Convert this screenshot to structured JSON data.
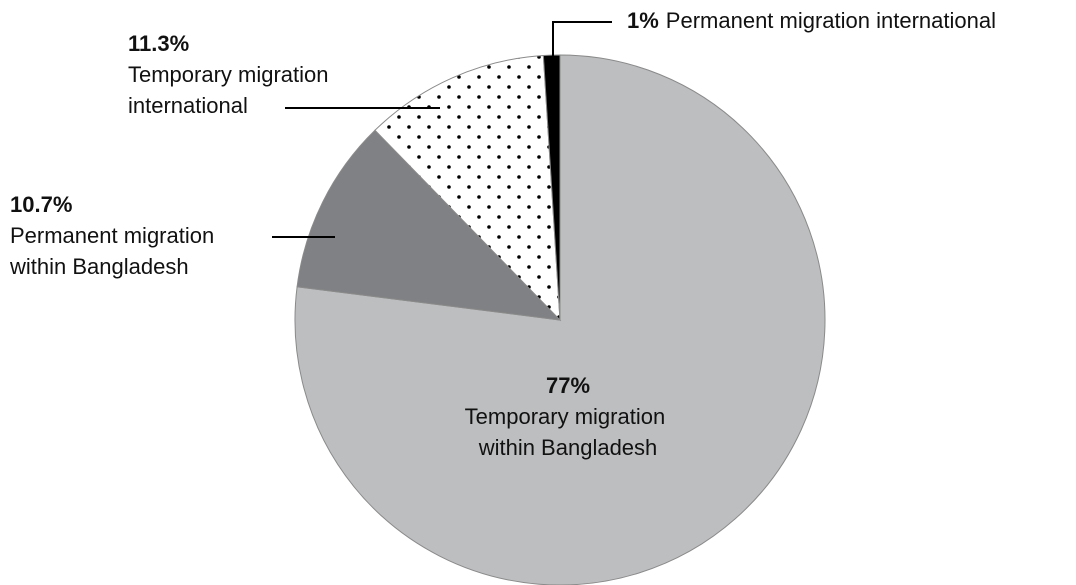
{
  "chart_data": {
    "type": "pie",
    "categories": [
      "Temporary migration within Bangladesh",
      "Permanent migration within Bangladesh",
      "Temporary migration international",
      "Permanent migration international"
    ],
    "values": [
      77,
      10.7,
      11.3,
      1
    ],
    "value_labels": [
      "77%",
      "10.7%",
      "11.3%",
      "1%"
    ],
    "colors": [
      "#bdbec0",
      "#808184",
      "dots",
      "#000000"
    ]
  }
}
